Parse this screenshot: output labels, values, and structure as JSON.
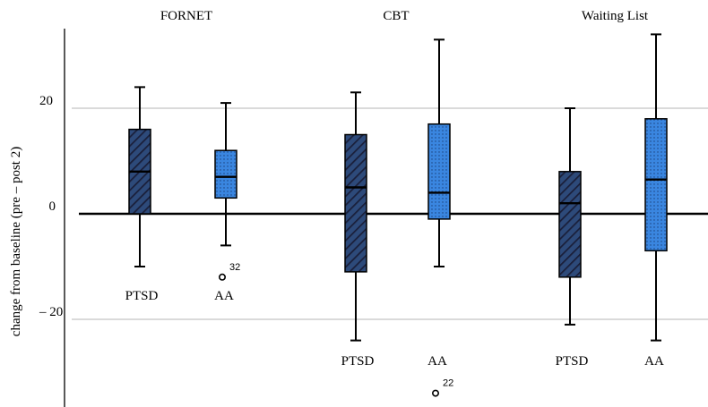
{
  "chart_data": {
    "type": "boxplot",
    "title": "",
    "ylabel": "change from baseline (pre – post 2)",
    "xlabel": "",
    "ylim": [
      -38,
      35
    ],
    "y_ticks": [
      {
        "value": 20,
        "label": "20"
      },
      {
        "value": 0,
        "label": "0"
      },
      {
        "value": -20,
        "label": "– 20"
      }
    ],
    "groups": [
      "FORNET",
      "CBT",
      "Waiting List"
    ],
    "series": [
      {
        "name": "PTSD",
        "style": "hatched",
        "fill": "#2d4a7a",
        "hatch": "#1a1f3a"
      },
      {
        "name": "AA",
        "style": "dotted",
        "fill": "#3a86e0",
        "dots": "#1a3f7a"
      }
    ],
    "boxes": [
      {
        "group": "FORNET",
        "series": "PTSD",
        "label": "PTSD",
        "whisker_low": -10,
        "q1": 0,
        "median": 8,
        "q3": 16,
        "whisker_high": 24,
        "outliers": []
      },
      {
        "group": "FORNET",
        "series": "AA",
        "label": "AA",
        "whisker_low": -6,
        "q1": 3,
        "median": 7,
        "q3": 12,
        "whisker_high": 21,
        "outliers": [
          {
            "value": -12,
            "label": "32"
          }
        ]
      },
      {
        "group": "CBT",
        "series": "PTSD",
        "label": "PTSD",
        "whisker_low": -24,
        "q1": -11,
        "median": 5,
        "q3": 15,
        "whisker_high": 23,
        "outliers": []
      },
      {
        "group": "CBT",
        "series": "AA",
        "label": "AA",
        "whisker_low": -10,
        "q1": -1,
        "median": 4,
        "q3": 17,
        "whisker_high": 33,
        "outliers": [
          {
            "value": -34,
            "label": "22"
          }
        ]
      },
      {
        "group": "Waiting List",
        "series": "PTSD",
        "label": "PTSD",
        "whisker_low": -21,
        "q1": -12,
        "median": 2,
        "q3": 8,
        "whisker_high": 20,
        "outliers": []
      },
      {
        "group": "Waiting List",
        "series": "AA",
        "label": "AA",
        "whisker_low": -24,
        "q1": -7,
        "median": 6.5,
        "q3": 18,
        "whisker_high": 34,
        "outliers": []
      }
    ],
    "grid": true,
    "legend": "none"
  }
}
